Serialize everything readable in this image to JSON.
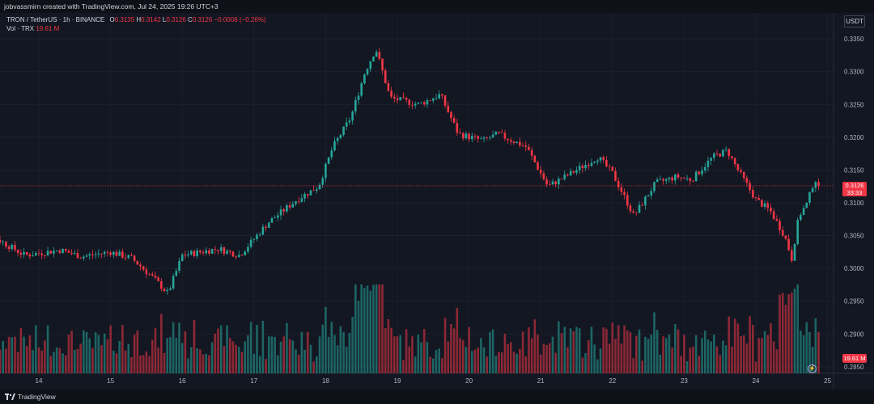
{
  "header": {
    "created_by": "jobvassmirn created with TradingView.com, Jul 24, 2025 19:26 UTC+3"
  },
  "legend": {
    "symbol": "TRON / TetherUS · 1h · BINANCE",
    "o_label": "O",
    "o_value": "0.3135",
    "h_label": "H",
    "h_value": "0.3142",
    "l_label": "L",
    "l_value": "0.3126",
    "c_label": "C",
    "c_value": "0.3126",
    "change": "−0.0008 (−0.26%)",
    "vol_label": "Vol · TRX",
    "vol_value": "19.61 M"
  },
  "currency": "USDT",
  "price_tag": {
    "price": "0.3126",
    "countdown": "33:33"
  },
  "volume_tag": "19.61 M",
  "footer": {
    "brand": "TradingView"
  },
  "colors": {
    "up": "#26a69a",
    "down": "#f23645",
    "background": "#131722",
    "grid": "#1f2330"
  },
  "chart_data": {
    "type": "candlestick",
    "timeframe": "1h",
    "y_ticks": [
      "0.3350",
      "0.3300",
      "0.3250",
      "0.3200",
      "0.3150",
      "0.3100",
      "0.3050",
      "0.3000",
      "0.2950",
      "0.2900",
      "0.2850"
    ],
    "ylim": [
      0.284,
      0.3365
    ],
    "x_ticks": [
      "14",
      "15",
      "16",
      "17",
      "18",
      "19",
      "20",
      "21",
      "22",
      "23",
      "24",
      "25"
    ],
    "last_price": 0.3126,
    "key_points": [
      {
        "day": 13.0,
        "close": 0.302
      },
      {
        "day": 13.4,
        "close": 0.3046
      },
      {
        "day": 13.8,
        "close": 0.302
      },
      {
        "day": 14.3,
        "close": 0.3028
      },
      {
        "day": 14.6,
        "close": 0.3018
      },
      {
        "day": 15.0,
        "close": 0.3025
      },
      {
        "day": 15.3,
        "close": 0.3015
      },
      {
        "day": 15.6,
        "close": 0.2985
      },
      {
        "day": 15.8,
        "close": 0.2962
      },
      {
        "day": 16.0,
        "close": 0.302
      },
      {
        "day": 16.5,
        "close": 0.303
      },
      {
        "day": 16.8,
        "close": 0.302
      },
      {
        "day": 17.2,
        "close": 0.307
      },
      {
        "day": 17.6,
        "close": 0.3105
      },
      {
        "day": 17.9,
        "close": 0.3125
      },
      {
        "day": 18.1,
        "close": 0.3185
      },
      {
        "day": 18.35,
        "close": 0.323
      },
      {
        "day": 18.55,
        "close": 0.33
      },
      {
        "day": 18.7,
        "close": 0.3335
      },
      {
        "day": 18.9,
        "close": 0.326
      },
      {
        "day": 19.3,
        "close": 0.325
      },
      {
        "day": 19.6,
        "close": 0.3265
      },
      {
        "day": 19.85,
        "close": 0.3205
      },
      {
        "day": 20.2,
        "close": 0.3195
      },
      {
        "day": 20.4,
        "close": 0.3205
      },
      {
        "day": 20.8,
        "close": 0.3185
      },
      {
        "day": 21.1,
        "close": 0.3125
      },
      {
        "day": 21.5,
        "close": 0.315
      },
      {
        "day": 21.8,
        "close": 0.317
      },
      {
        "day": 22.0,
        "close": 0.3145
      },
      {
        "day": 22.3,
        "close": 0.308
      },
      {
        "day": 22.6,
        "close": 0.313
      },
      {
        "day": 22.9,
        "close": 0.314
      },
      {
        "day": 23.1,
        "close": 0.3135
      },
      {
        "day": 23.4,
        "close": 0.317
      },
      {
        "day": 23.6,
        "close": 0.318
      },
      {
        "day": 23.75,
        "close": 0.315
      },
      {
        "day": 24.0,
        "close": 0.3105
      },
      {
        "day": 24.2,
        "close": 0.3088
      },
      {
        "day": 24.4,
        "close": 0.305
      },
      {
        "day": 24.5,
        "close": 0.3015
      },
      {
        "day": 24.6,
        "close": 0.308
      },
      {
        "day": 24.72,
        "close": 0.31
      },
      {
        "day": 24.82,
        "close": 0.3138
      },
      {
        "day": 24.87,
        "close": 0.3126
      }
    ]
  }
}
